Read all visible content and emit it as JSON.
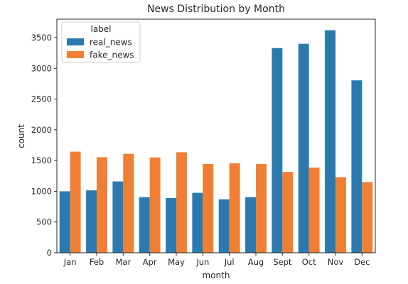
{
  "colors": {
    "real_news": "#2a7ab0",
    "fake_news": "#f07f33",
    "axis": "#262626",
    "background": "#ffffff"
  },
  "chart_data": {
    "type": "bar",
    "title": "News Distribution by Month",
    "xlabel": "month",
    "ylabel": "count",
    "categories": [
      "Jan",
      "Feb",
      "Mar",
      "Apr",
      "May",
      "Jun",
      "Jul",
      "Aug",
      "Sept",
      "Oct",
      "Nov",
      "Dec"
    ],
    "series": [
      {
        "name": "real_news",
        "values": [
          1000,
          1015,
          1160,
          905,
          890,
          975,
          870,
          905,
          3330,
          3400,
          3620,
          2805
        ]
      },
      {
        "name": "fake_news",
        "values": [
          1645,
          1555,
          1610,
          1550,
          1635,
          1445,
          1455,
          1445,
          1315,
          1385,
          1230,
          1150
        ]
      }
    ],
    "ylim": [
      0,
      3800
    ],
    "yticks": [
      0,
      500,
      1000,
      1500,
      2000,
      2500,
      3000,
      3500
    ],
    "grid": false,
    "legend": {
      "title": "label",
      "placement": "top-left"
    }
  }
}
